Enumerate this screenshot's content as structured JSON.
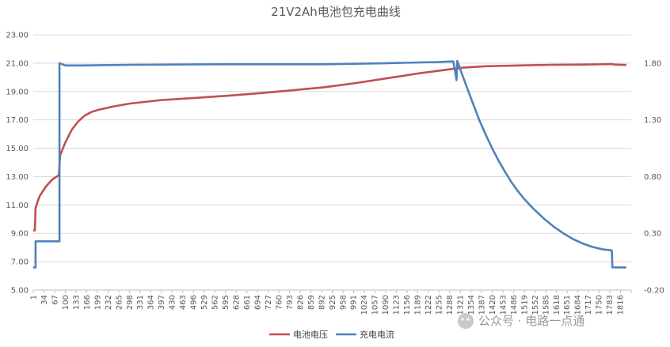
{
  "chart_data": {
    "type": "line",
    "title": "21V2Ah电池包充电曲线",
    "x_ticks": [
      "1",
      "34",
      "67",
      "100",
      "133",
      "166",
      "199",
      "232",
      "265",
      "298",
      "331",
      "364",
      "397",
      "430",
      "463",
      "496",
      "529",
      "562",
      "595",
      "628",
      "661",
      "694",
      "727",
      "760",
      "793",
      "826",
      "859",
      "892",
      "925",
      "958",
      "991",
      "1024",
      "1057",
      "1090",
      "1123",
      "1156",
      "1189",
      "1222",
      "1255",
      "1288",
      "1321",
      "1354",
      "1387",
      "1420",
      "1453",
      "1486",
      "1519",
      "1552",
      "1585",
      "1618",
      "1651",
      "1684",
      "1717",
      "1750",
      "1783",
      "1816"
    ],
    "x_range": [
      1,
      1850
    ],
    "y_left": {
      "ticks": [
        "5.00",
        "7.00",
        "9.00",
        "11.00",
        "13.00",
        "15.00",
        "17.00",
        "19.00",
        "21.00",
        "23.00"
      ],
      "range": [
        5,
        23
      ]
    },
    "y_right": {
      "ticks": [
        "-0.20",
        "0.30",
        "0.80",
        "1.30",
        "1.80"
      ],
      "range": [
        -0.2,
        2.05
      ]
    },
    "grid": "horizontal",
    "legend_position": "bottom",
    "series": [
      {
        "name": "电池电压",
        "axis": "left",
        "color": "#c0504d",
        "points": [
          [
            1,
            9.2
          ],
          [
            6,
            9.2
          ],
          [
            8,
            10.8
          ],
          [
            20,
            11.6
          ],
          [
            40,
            12.3
          ],
          [
            60,
            12.8
          ],
          [
            80,
            13.1
          ],
          [
            84,
            14.5
          ],
          [
            100,
            15.4
          ],
          [
            120,
            16.3
          ],
          [
            140,
            16.9
          ],
          [
            160,
            17.3
          ],
          [
            180,
            17.55
          ],
          [
            200,
            17.7
          ],
          [
            250,
            17.95
          ],
          [
            300,
            18.15
          ],
          [
            400,
            18.4
          ],
          [
            500,
            18.55
          ],
          [
            600,
            18.7
          ],
          [
            700,
            18.88
          ],
          [
            800,
            19.08
          ],
          [
            900,
            19.3
          ],
          [
            1000,
            19.6
          ],
          [
            1100,
            19.95
          ],
          [
            1200,
            20.3
          ],
          [
            1300,
            20.6
          ],
          [
            1330,
            20.68
          ],
          [
            1400,
            20.78
          ],
          [
            1500,
            20.84
          ],
          [
            1600,
            20.88
          ],
          [
            1700,
            20.9
          ],
          [
            1790,
            20.93
          ],
          [
            1800,
            20.9
          ],
          [
            1835,
            20.87
          ]
        ]
      },
      {
        "name": "充电电流",
        "axis": "right",
        "color": "#4f81bd",
        "points": [
          [
            1,
            0.0
          ],
          [
            8,
            0.0
          ],
          [
            8,
            0.23
          ],
          [
            82,
            0.23
          ],
          [
            82,
            1.8
          ],
          [
            100,
            1.78
          ],
          [
            150,
            1.78
          ],
          [
            300,
            1.785
          ],
          [
            600,
            1.79
          ],
          [
            900,
            1.79
          ],
          [
            1100,
            1.8
          ],
          [
            1250,
            1.81
          ],
          [
            1300,
            1.815
          ],
          [
            1310,
            1.65
          ],
          [
            1312,
            1.82
          ],
          [
            1340,
            1.6
          ],
          [
            1360,
            1.45
          ],
          [
            1380,
            1.3
          ],
          [
            1400,
            1.17
          ],
          [
            1420,
            1.05
          ],
          [
            1440,
            0.94
          ],
          [
            1460,
            0.84
          ],
          [
            1480,
            0.75
          ],
          [
            1500,
            0.67
          ],
          [
            1520,
            0.6
          ],
          [
            1550,
            0.51
          ],
          [
            1580,
            0.43
          ],
          [
            1610,
            0.36
          ],
          [
            1640,
            0.3
          ],
          [
            1670,
            0.25
          ],
          [
            1700,
            0.21
          ],
          [
            1730,
            0.18
          ],
          [
            1760,
            0.16
          ],
          [
            1790,
            0.15
          ],
          [
            1792,
            0.0
          ],
          [
            1835,
            0.0
          ]
        ]
      }
    ]
  },
  "watermark": "公众号 · 电路一点通"
}
